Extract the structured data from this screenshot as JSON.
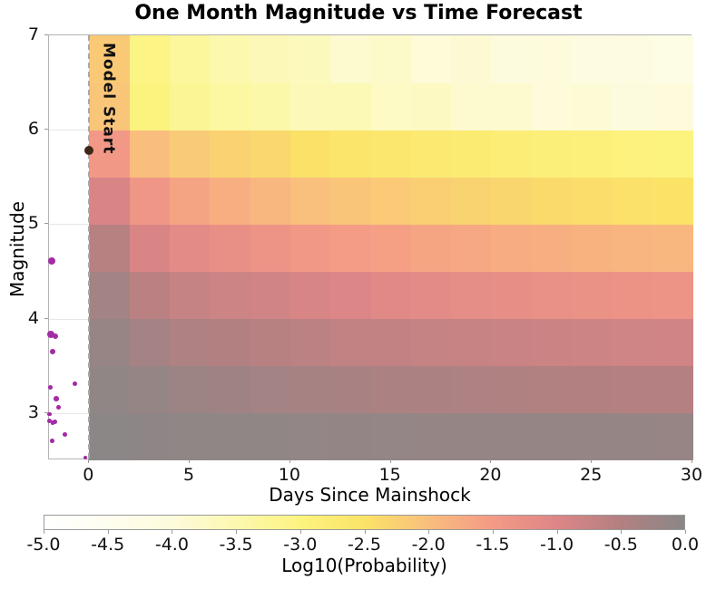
{
  "title": "One Month Magnitude vs Time Forecast",
  "chart_data": {
    "type": "heatmap",
    "title": "One Month Magnitude vs Time Forecast",
    "xlabel": "Days Since Mainshock",
    "ylabel": "Magnitude",
    "colorbar_label": "Log10(Probability)",
    "xlim": [
      -2,
      30
    ],
    "ylim": [
      2.5,
      7
    ],
    "x_ticks": [
      0,
      5,
      10,
      15,
      20,
      25,
      30
    ],
    "y_ticks": [
      3,
      4,
      5,
      6,
      7
    ],
    "grid_magnitudes": [
      3,
      4,
      5,
      6
    ],
    "legend_position": "bottom colorbar",
    "day_bin_edges": [
      0,
      2,
      4,
      6,
      8,
      10,
      12,
      14,
      16,
      18,
      20,
      22,
      24,
      26,
      28,
      30
    ],
    "magnitude_bin_edges": [
      2.5,
      3,
      3.5,
      4,
      4.5,
      5,
      5.5,
      6,
      6.5,
      7
    ],
    "log10_probability_rows_low_to_high_magnitude": [
      [
        -0.02,
        -0.05,
        -0.07,
        -0.08,
        -0.09,
        -0.1,
        -0.11,
        -0.12,
        -0.13,
        -0.13,
        -0.14,
        -0.14,
        -0.15,
        -0.15,
        -0.16
      ],
      [
        -0.07,
        -0.15,
        -0.22,
        -0.26,
        -0.3,
        -0.34,
        -0.37,
        -0.4,
        -0.42,
        -0.44,
        -0.46,
        -0.48,
        -0.5,
        -0.51,
        -0.52
      ],
      [
        -0.16,
        -0.33,
        -0.44,
        -0.5,
        -0.55,
        -0.61,
        -0.65,
        -0.68,
        -0.71,
        -0.74,
        -0.77,
        -0.79,
        -0.81,
        -0.83,
        -0.85
      ],
      [
        -0.3,
        -0.6,
        -0.72,
        -0.8,
        -0.85,
        -0.94,
        -1.01,
        -1.07,
        -1.12,
        -1.17,
        -1.21,
        -1.25,
        -1.29,
        -1.32,
        -1.35
      ],
      [
        -0.55,
        -0.95,
        -1.14,
        -1.26,
        -1.35,
        -1.45,
        -1.53,
        -1.59,
        -1.65,
        -1.7,
        -1.75,
        -1.79,
        -1.83,
        -1.87,
        -1.9
      ],
      [
        -0.95,
        -1.4,
        -1.64,
        -1.79,
        -1.9,
        -2.01,
        -2.09,
        -2.16,
        -2.23,
        -2.28,
        -2.33,
        -2.38,
        -2.42,
        -2.46,
        -2.5
      ],
      [
        -1.45,
        -2.0,
        -2.17,
        -2.27,
        -2.35,
        -2.47,
        -2.56,
        -2.64,
        -2.7,
        -2.76,
        -2.82,
        -2.87,
        -2.92,
        -2.96,
        -3.0
      ],
      [
        -2.1,
        -3.0,
        -3.22,
        -3.35,
        -3.45,
        -3.6,
        -3.58,
        -3.75,
        -3.72,
        -3.87,
        -3.83,
        -3.97,
        -3.93,
        -4.05,
        -4.0
      ],
      [
        -2.15,
        -3.05,
        -3.31,
        -3.48,
        -3.6,
        -3.66,
        -3.85,
        -3.8,
        -3.95,
        -3.9,
        -4.06,
        -4.0,
        -4.15,
        -4.1,
        -4.2
      ]
    ],
    "colormap": {
      "values": [
        -5.0,
        -4.5,
        -4.0,
        -3.5,
        -3.0,
        -2.5,
        -2.0,
        -1.5,
        -1.0,
        -0.5,
        0.0
      ],
      "colors": [
        "#FFFFFF",
        "#FEFDEF",
        "#FDFBDC",
        "#FCF8AF",
        "#FCF37F",
        "#FBE367",
        "#F9BE7D",
        "#F49A86",
        "#DD8687",
        "#B38081",
        "#8A8787"
      ]
    },
    "colorbar_tick_labels": [
      "-5.0",
      "-4.5",
      "-4.0",
      "-3.5",
      "-3.0",
      "-2.5",
      "-2.0",
      "-1.5",
      "-1.0",
      "-0.5",
      "0.0"
    ],
    "annotation": {
      "label": "Model Start",
      "x_day": 0
    },
    "mainshock": {
      "day": 0,
      "magnitude": 5.78,
      "color": "#3D2817",
      "radius": 5
    },
    "observed_events_color": "#A32CA5",
    "observed_events": [
      {
        "day": -1.85,
        "magnitude": 4.61,
        "r": 4
      },
      {
        "day": -1.9,
        "magnitude": 3.83,
        "r": 4
      },
      {
        "day": -1.7,
        "magnitude": 3.81,
        "r": 3
      },
      {
        "day": -1.83,
        "magnitude": 3.65,
        "r": 3.2
      },
      {
        "day": -1.93,
        "magnitude": 3.27,
        "r": 2.4
      },
      {
        "day": -1.63,
        "magnitude": 3.15,
        "r": 2.8
      },
      {
        "day": -0.71,
        "magnitude": 3.31,
        "r": 2.4
      },
      {
        "day": -1.51,
        "magnitude": 3.06,
        "r": 2.4
      },
      {
        "day": -1.98,
        "magnitude": 2.99,
        "r": 2.4
      },
      {
        "day": -1.98,
        "magnitude": 2.92,
        "r": 2.4
      },
      {
        "day": -1.71,
        "magnitude": 2.91,
        "r": 2.4
      },
      {
        "day": -1.82,
        "magnitude": 2.9,
        "r": 2.4
      },
      {
        "day": -1.22,
        "magnitude": 2.77,
        "r": 2.4
      },
      {
        "day": -1.85,
        "magnitude": 2.71,
        "r": 2.4
      },
      {
        "day": -0.21,
        "magnitude": 2.53,
        "r": 2.0
      }
    ]
  }
}
